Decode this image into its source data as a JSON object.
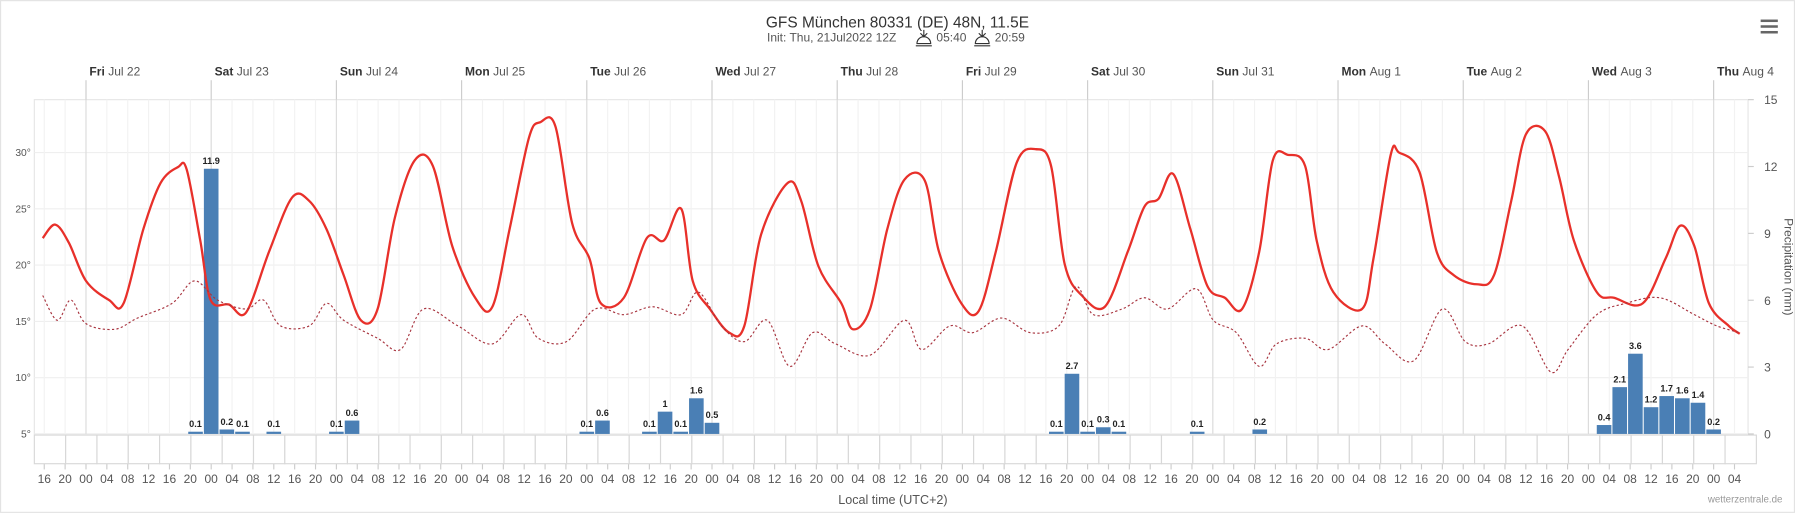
{
  "chart_data": {
    "type": "line",
    "title": "GFS München 80331 (DE) 48N, 11.5E",
    "subtitle": "Init: Thu, 21Jul2022 12Z",
    "sunrise": "05:40",
    "sunset": "20:59",
    "x_label": "Local time (UTC+2)",
    "y2_label": "Precipitation (mm)",
    "credit": "wetterzentrale.de",
    "xlim": [
      14.1,
      342.6
    ],
    "xticks": [
      {
        "value": 16,
        "label": "16"
      },
      {
        "value": 20,
        "label": "20"
      },
      {
        "value": 24,
        "label": "00"
      },
      {
        "value": 28,
        "label": "04"
      },
      {
        "value": 32,
        "label": "08"
      },
      {
        "value": 36,
        "label": "12"
      },
      {
        "value": 40,
        "label": "16"
      },
      {
        "value": 44,
        "label": "20"
      },
      {
        "value": 48,
        "label": "00"
      },
      {
        "value": 52,
        "label": "04"
      },
      {
        "value": 56,
        "label": "08"
      },
      {
        "value": 60,
        "label": "12"
      },
      {
        "value": 64,
        "label": "16"
      },
      {
        "value": 68,
        "label": "20"
      },
      {
        "value": 72,
        "label": "00"
      },
      {
        "value": 76,
        "label": "04"
      },
      {
        "value": 80,
        "label": "08"
      },
      {
        "value": 84,
        "label": "12"
      },
      {
        "value": 88,
        "label": "16"
      },
      {
        "value": 92,
        "label": "20"
      },
      {
        "value": 96,
        "label": "00"
      },
      {
        "value": 100,
        "label": "04"
      },
      {
        "value": 104,
        "label": "08"
      },
      {
        "value": 108,
        "label": "12"
      },
      {
        "value": 112,
        "label": "16"
      },
      {
        "value": 116,
        "label": "20"
      },
      {
        "value": 120,
        "label": "00"
      },
      {
        "value": 124,
        "label": "04"
      },
      {
        "value": 128,
        "label": "08"
      },
      {
        "value": 132,
        "label": "12"
      },
      {
        "value": 136,
        "label": "16"
      },
      {
        "value": 140,
        "label": "20"
      },
      {
        "value": 144,
        "label": "00"
      },
      {
        "value": 148,
        "label": "04"
      },
      {
        "value": 152,
        "label": "08"
      },
      {
        "value": 156,
        "label": "12"
      },
      {
        "value": 160,
        "label": "16"
      },
      {
        "value": 164,
        "label": "20"
      },
      {
        "value": 168,
        "label": "00"
      },
      {
        "value": 172,
        "label": "04"
      },
      {
        "value": 176,
        "label": "08"
      },
      {
        "value": 180,
        "label": "12"
      },
      {
        "value": 184,
        "label": "16"
      },
      {
        "value": 188,
        "label": "20"
      },
      {
        "value": 192,
        "label": "00"
      },
      {
        "value": 196,
        "label": "04"
      },
      {
        "value": 200,
        "label": "08"
      },
      {
        "value": 204,
        "label": "12"
      },
      {
        "value": 208,
        "label": "16"
      },
      {
        "value": 212,
        "label": "20"
      },
      {
        "value": 216,
        "label": "00"
      },
      {
        "value": 220,
        "label": "04"
      },
      {
        "value": 224,
        "label": "08"
      },
      {
        "value": 228,
        "label": "12"
      },
      {
        "value": 232,
        "label": "16"
      },
      {
        "value": 236,
        "label": "20"
      },
      {
        "value": 240,
        "label": "00"
      },
      {
        "value": 244,
        "label": "04"
      },
      {
        "value": 248,
        "label": "08"
      },
      {
        "value": 252,
        "label": "12"
      },
      {
        "value": 256,
        "label": "16"
      },
      {
        "value": 260,
        "label": "20"
      },
      {
        "value": 264,
        "label": "00"
      },
      {
        "value": 268,
        "label": "04"
      },
      {
        "value": 272,
        "label": "08"
      },
      {
        "value": 276,
        "label": "12"
      },
      {
        "value": 280,
        "label": "16"
      },
      {
        "value": 284,
        "label": "20"
      },
      {
        "value": 288,
        "label": "00"
      },
      {
        "value": 292,
        "label": "04"
      },
      {
        "value": 296,
        "label": "08"
      },
      {
        "value": 300,
        "label": "12"
      },
      {
        "value": 304,
        "label": "16"
      },
      {
        "value": 308,
        "label": "20"
      },
      {
        "value": 312,
        "label": "00"
      },
      {
        "value": 316,
        "label": "04"
      },
      {
        "value": 320,
        "label": "08"
      },
      {
        "value": 324,
        "label": "12"
      },
      {
        "value": 328,
        "label": "16"
      },
      {
        "value": 332,
        "label": "20"
      },
      {
        "value": 336,
        "label": "00"
      },
      {
        "value": 340,
        "label": "04"
      }
    ],
    "day_ticks": [
      {
        "value": 24,
        "day": "Fri",
        "date": "Jul 22"
      },
      {
        "value": 48,
        "day": "Sat",
        "date": "Jul 23"
      },
      {
        "value": 72,
        "day": "Sun",
        "date": "Jul 24"
      },
      {
        "value": 96,
        "day": "Mon",
        "date": "Jul 25"
      },
      {
        "value": 120,
        "day": "Tue",
        "date": "Jul 26"
      },
      {
        "value": 144,
        "day": "Wed",
        "date": "Jul 27"
      },
      {
        "value": 168,
        "day": "Thu",
        "date": "Jul 28"
      },
      {
        "value": 192,
        "day": "Fri",
        "date": "Jul 29"
      },
      {
        "value": 216,
        "day": "Sat",
        "date": "Jul 30"
      },
      {
        "value": 240,
        "day": "Sun",
        "date": "Jul 31"
      },
      {
        "value": 264,
        "day": "Mon",
        "date": "Aug 1"
      },
      {
        "value": 288,
        "day": "Tue",
        "date": "Aug 2"
      },
      {
        "value": 312,
        "day": "Wed",
        "date": "Aug 3"
      },
      {
        "value": 336,
        "day": "Thu",
        "date": "Aug 4"
      }
    ],
    "ylim": [
      5,
      34.7
    ],
    "yticks": [
      {
        "value": 5,
        "label": "5°"
      },
      {
        "value": 10,
        "label": "10°"
      },
      {
        "value": 15,
        "label": "15°"
      },
      {
        "value": 20,
        "label": "20°"
      },
      {
        "value": 25,
        "label": "25°"
      },
      {
        "value": 30,
        "label": "30°"
      }
    ],
    "y2lim": [
      0,
      15
    ],
    "y2ticks": [
      0,
      3,
      6,
      9,
      12,
      15
    ],
    "grid": true,
    "series": [
      {
        "type": "line",
        "color": "#e8302a",
        "dash": false,
        "x": [
          15.7,
          18.1,
          20.7,
          24,
          28.4,
          31.2,
          35.0,
          38.3,
          41.6,
          43.3,
          45.9,
          47.9,
          51.4,
          54.7,
          59.1,
          63.5,
          66.8,
          70.1,
          73.4,
          76.7,
          79.9,
          83.2,
          87.0,
          90.5,
          94.2,
          98.6,
          101.9,
          105.2,
          108.9,
          111.1,
          114.0,
          117.2,
          120.5,
          122.7,
          127.1,
          131.5,
          134.8,
          138.1,
          140.3,
          143.6,
          147.3,
          150.2,
          153.4,
          158.5,
          161.1,
          164.4,
          168.8,
          171.0,
          174.3,
          177.6,
          180.9,
          184.8,
          187.5,
          191.8,
          195.1,
          198.4,
          202.4,
          206.1,
          209.0,
          211.6,
          214.9,
          219.3,
          223.7,
          226.9,
          229.6,
          232.4,
          235.7,
          239.0,
          242.3,
          245.6,
          248.9,
          251.5,
          254.4,
          257.7,
          259.9,
          263.1,
          268.6,
          270.8,
          274.1,
          275.7,
          279.6,
          282.9,
          286.2,
          290.6,
          293.9,
          297.2,
          300.0,
          303.7,
          306.4,
          309.2,
          313.6,
          316.9,
          322.4,
          326.8,
          329.6,
          332.3,
          335.1,
          338.9,
          341.0
        ],
        "values": [
          22.4,
          23.6,
          22.0,
          18.6,
          16.9,
          16.6,
          23.2,
          27.3,
          28.7,
          28.5,
          22.2,
          16.9,
          16.5,
          15.8,
          21.2,
          26.0,
          25.7,
          23.2,
          19.1,
          15.1,
          16.1,
          24.2,
          29.3,
          28.8,
          21.7,
          17.1,
          16.3,
          23.2,
          31.3,
          32.7,
          32.3,
          23.7,
          20.6,
          16.6,
          17.1,
          22.4,
          22.2,
          25.0,
          18.6,
          16.1,
          14.0,
          14.6,
          22.7,
          27.3,
          25.7,
          19.9,
          16.6,
          14.3,
          16.1,
          23.2,
          27.6,
          27.5,
          21.2,
          16.6,
          15.9,
          21.2,
          29.1,
          30.3,
          28.8,
          20.1,
          17.3,
          16.3,
          21.2,
          25.2,
          25.9,
          28.1,
          23.2,
          18.1,
          17.1,
          16.1,
          21.2,
          29.3,
          29.8,
          28.8,
          22.2,
          17.6,
          16.1,
          20.6,
          29.8,
          30.0,
          28.3,
          21.2,
          19.1,
          18.3,
          19.1,
          25.7,
          31.6,
          31.9,
          27.8,
          22.2,
          17.6,
          17.1,
          16.6,
          20.6,
          23.5,
          21.7,
          16.6,
          14.6,
          13.9
        ]
      },
      {
        "type": "line",
        "color": "#a8343f",
        "dash": true,
        "x": [
          15.7,
          18.5,
          21.1,
          24,
          29.5,
          33.9,
          40.5,
          44.8,
          49.2,
          54.7,
          58.0,
          61.3,
          66.8,
          70.1,
          73.4,
          79.9,
          84.3,
          88.7,
          95.3,
          101.9,
          107.4,
          110.7,
          116.1,
          121.6,
          127.1,
          132.6,
          138.1,
          141.4,
          145.8,
          150.2,
          154.6,
          158.9,
          163.3,
          167.7,
          174.3,
          180.9,
          184.2,
          189.6,
          194.0,
          199.5,
          205.0,
          210.5,
          213.8,
          217.1,
          222.6,
          226.9,
          231.3,
          236.8,
          240.1,
          244.5,
          248.9,
          252.2,
          257.7,
          262.1,
          268.6,
          273.0,
          278.5,
          284.0,
          288.4,
          292.8,
          299.3,
          304.8,
          308.1,
          313.6,
          319.1,
          325.7,
          332.3,
          336.6,
          341.0
        ],
        "values": [
          17.3,
          15.1,
          16.9,
          14.8,
          14.3,
          15.3,
          16.6,
          18.6,
          16.9,
          16.1,
          16.9,
          14.6,
          14.6,
          16.6,
          15.1,
          13.5,
          12.5,
          16.1,
          14.6,
          13.0,
          15.6,
          13.5,
          13.2,
          16.1,
          15.6,
          16.3,
          15.6,
          17.6,
          14.6,
          13.2,
          15.1,
          11.0,
          14.0,
          13.0,
          12.0,
          15.1,
          12.5,
          14.6,
          14.0,
          15.3,
          14.0,
          14.6,
          18.1,
          15.6,
          16.1,
          17.1,
          16.1,
          17.9,
          15.1,
          14.0,
          11.0,
          13.0,
          13.5,
          12.5,
          14.6,
          13.0,
          11.5,
          16.1,
          13.2,
          13.0,
          14.6,
          10.5,
          12.5,
          15.6,
          16.6,
          17.1,
          15.6,
          14.6,
          14.0
        ]
      },
      {
        "type": "bar",
        "axis": "y2",
        "color": "#4a7fb5",
        "x": [
          45,
          48,
          51,
          54,
          60,
          72,
          75,
          120,
          123,
          132,
          135,
          138,
          141,
          144,
          210,
          213,
          216,
          219,
          222,
          237,
          249,
          315,
          318,
          321,
          324,
          327,
          330,
          333,
          336
        ],
        "values": [
          0.1,
          11.9,
          0.2,
          0.1,
          0.1,
          0.1,
          0.6,
          0.1,
          0.6,
          0.1,
          1.0,
          0.1,
          1.6,
          0.5,
          0.1,
          2.7,
          0.1,
          0.3,
          0.1,
          0.1,
          0.2,
          0.4,
          2.1,
          3.6,
          1.2,
          1.7,
          1.6,
          1.4,
          0.2
        ]
      }
    ]
  }
}
